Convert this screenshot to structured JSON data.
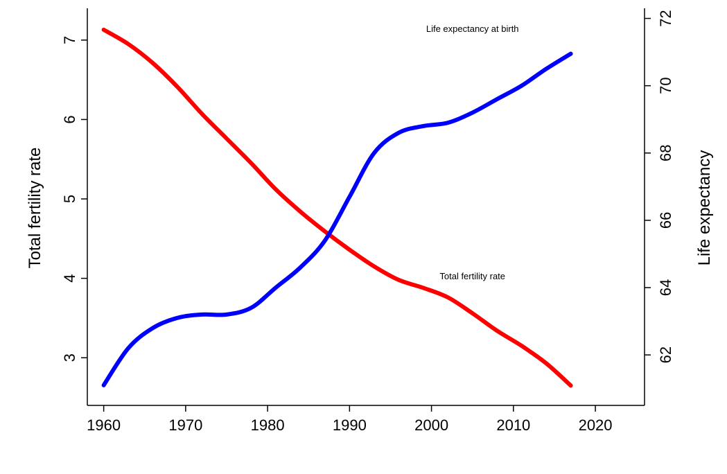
{
  "chart_data": {
    "type": "line",
    "title": "",
    "xlabel": "",
    "ylabel_left": "Total fertility rate",
    "ylabel_right": "Life expectancy",
    "xlim": [
      1958,
      2026
    ],
    "xticks": [
      1960,
      1970,
      1980,
      1990,
      2000,
      2010,
      2020
    ],
    "ylim_left": [
      2.4,
      7.4
    ],
    "yticks_left": [
      3,
      4,
      5,
      6,
      7
    ],
    "ylim_right": [
      60.5,
      72.3
    ],
    "yticks_right": [
      62,
      64,
      66,
      68,
      70,
      72
    ],
    "grid": false,
    "legend": "none",
    "series": [
      {
        "name": "Total fertility rate",
        "axis": "left",
        "color": "#ff0000",
        "x": [
          1960,
          1963,
          1966,
          1969,
          1972,
          1975,
          1978,
          1981,
          1984,
          1987,
          1990,
          1993,
          1996,
          1999,
          2002,
          2005,
          2008,
          2011,
          2014,
          2017
        ],
        "y": [
          7.13,
          6.95,
          6.71,
          6.41,
          6.07,
          5.76,
          5.45,
          5.12,
          4.84,
          4.59,
          4.36,
          4.15,
          3.98,
          3.88,
          3.76,
          3.56,
          3.34,
          3.15,
          2.93,
          2.65
        ]
      },
      {
        "name": "Life expectancy at birth",
        "axis": "right",
        "color": "#0000ff",
        "x": [
          1960,
          1963,
          1966,
          1969,
          1972,
          1975,
          1978,
          1981,
          1984,
          1987,
          1990,
          1993,
          1996,
          1999,
          2002,
          2005,
          2008,
          2011,
          2014,
          2017
        ],
        "y": [
          61.1,
          62.2,
          62.8,
          63.1,
          63.2,
          63.2,
          63.4,
          64.0,
          64.6,
          65.4,
          66.7,
          68.0,
          68.6,
          68.8,
          68.9,
          69.2,
          69.6,
          70.0,
          70.5,
          70.95
        ]
      }
    ],
    "annotations": [
      {
        "text": "Life expectancy at birth",
        "x": 2005,
        "axis": "right",
        "y": 71.6
      },
      {
        "text": "Total fertility rate",
        "x": 2005,
        "axis": "left",
        "y": 3.99
      }
    ]
  }
}
